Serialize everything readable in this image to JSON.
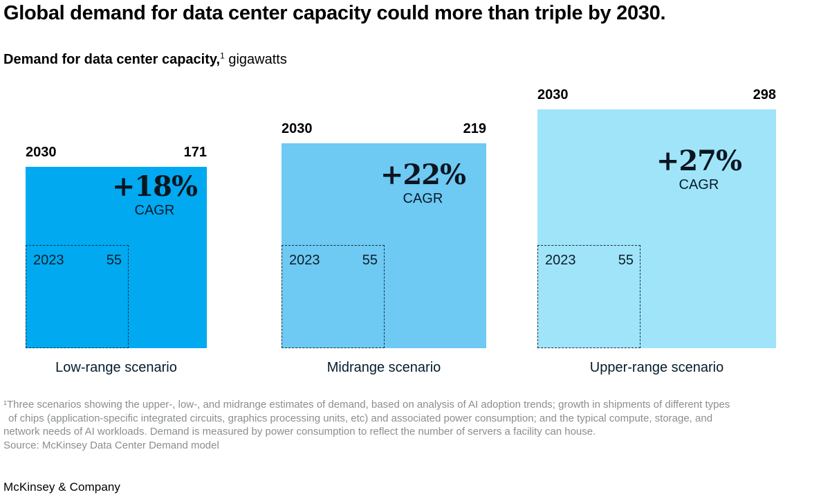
{
  "page": {
    "title": "Global demand for data center capacity could more than triple by 2030.",
    "subtitle_bold": "Demand for data center capacity,",
    "subtitle_sup": "1",
    "subtitle_rest": " gigawatts",
    "brand": "McKinsey & Company"
  },
  "squares": [
    {
      "year_big": "2030",
      "value_big": "171",
      "cagr": "+18%",
      "cagr_caption": "CAGR",
      "year_small": "2023",
      "value_small": "55",
      "scenario": "Low-range scenario",
      "color": "#00A9F0"
    },
    {
      "year_big": "2030",
      "value_big": "219",
      "cagr": "+22%",
      "cagr_caption": "CAGR",
      "year_small": "2023",
      "value_small": "55",
      "scenario": "Midrange scenario",
      "color": "#6EC9F3"
    },
    {
      "year_big": "2030",
      "value_big": "298",
      "cagr": "+27%",
      "cagr_caption": "CAGR",
      "year_small": "2023",
      "value_small": "55",
      "scenario": "Upper-range scenario",
      "color": "#A0E4FA"
    }
  ],
  "footnote": {
    "lines": [
      "¹Three scenarios showing the upper-, low-, and midrange estimates of demand, based on analysis of AI adoption trends; growth in shipments of different types",
      "of chips (application-specific integrated circuits, graphics processing units, etc) and associated power consumption; and the typical compute, storage, and",
      "network needs of AI workloads. Demand is measured by power consumption to reflect the number of servers a facility can house."
    ],
    "source": "Source: McKinsey Data Center Demand model"
  },
  "chart_data": {
    "type": "area",
    "variant": "proportional-area squares (square area is proportional to gigawatts)",
    "title": "Global demand for data center capacity could more than triple by 2030.",
    "subtitle": "Demand for data center capacity, gigawatts",
    "unit": "gigawatts",
    "categories": [
      "Low-range scenario",
      "Midrange scenario",
      "Upper-range scenario"
    ],
    "series": [
      {
        "name": "2023",
        "values": [
          55,
          55,
          55
        ]
      },
      {
        "name": "2030",
        "values": [
          171,
          219,
          298
        ]
      }
    ],
    "annotations": [
      {
        "label": "CAGR",
        "values": [
          "+18%",
          "+22%",
          "+27%"
        ]
      }
    ],
    "colors": {
      "low_range_2030": "#00A9F0",
      "midrange_2030": "#6EC9F3",
      "upper_range_2030": "#A0E4FA",
      "baseline_2023_outline": "#12303f"
    },
    "legend_position": "none",
    "grid": false
  }
}
